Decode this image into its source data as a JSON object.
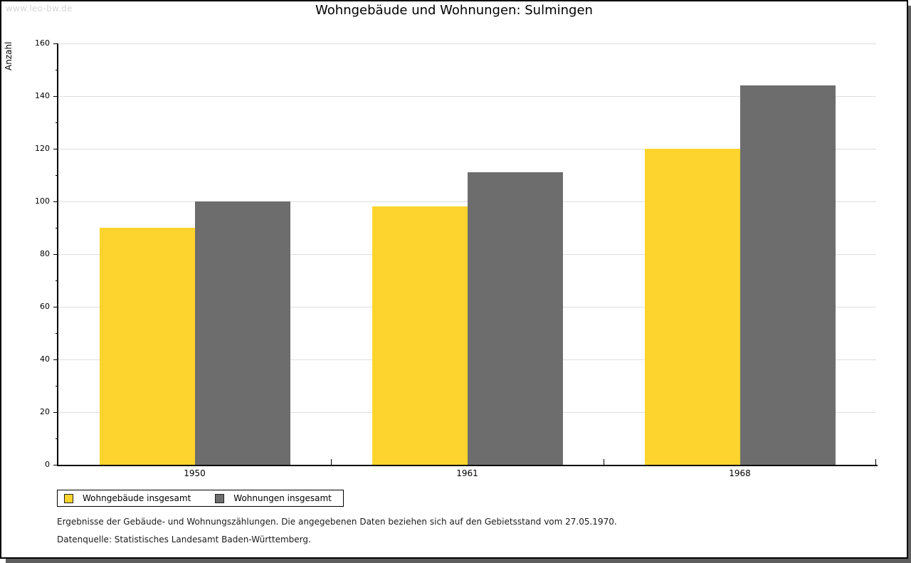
{
  "watermark": "www.leo-bw.de",
  "chart_data": {
    "type": "bar",
    "title": "Wohngebäude und Wohnungen: Sulmingen",
    "categories": [
      "1950",
      "1961",
      "1968"
    ],
    "series": [
      {
        "name": "Wohngebäude insgesamt",
        "color": "#FCD42D",
        "values": [
          90,
          98,
          120
        ]
      },
      {
        "name": "Wohnungen insgesamt",
        "color": "#6D6D6D",
        "values": [
          100,
          111,
          144
        ]
      }
    ],
    "xlabel": "",
    "ylabel": "Anzahl",
    "ylim": [
      0,
      160
    ],
    "ytick_step": 20,
    "ytick_minor_step": 10,
    "grid": true,
    "legend_position": "bottom-left"
  },
  "footnotes": [
    "Ergebnisse der Gebäude- und Wohnungszählungen. Die angegebenen Daten beziehen sich auf den Gebietsstand vom 27.05.1970.",
    "Datenquelle: Statistisches Landesamt Baden-Württemberg."
  ]
}
